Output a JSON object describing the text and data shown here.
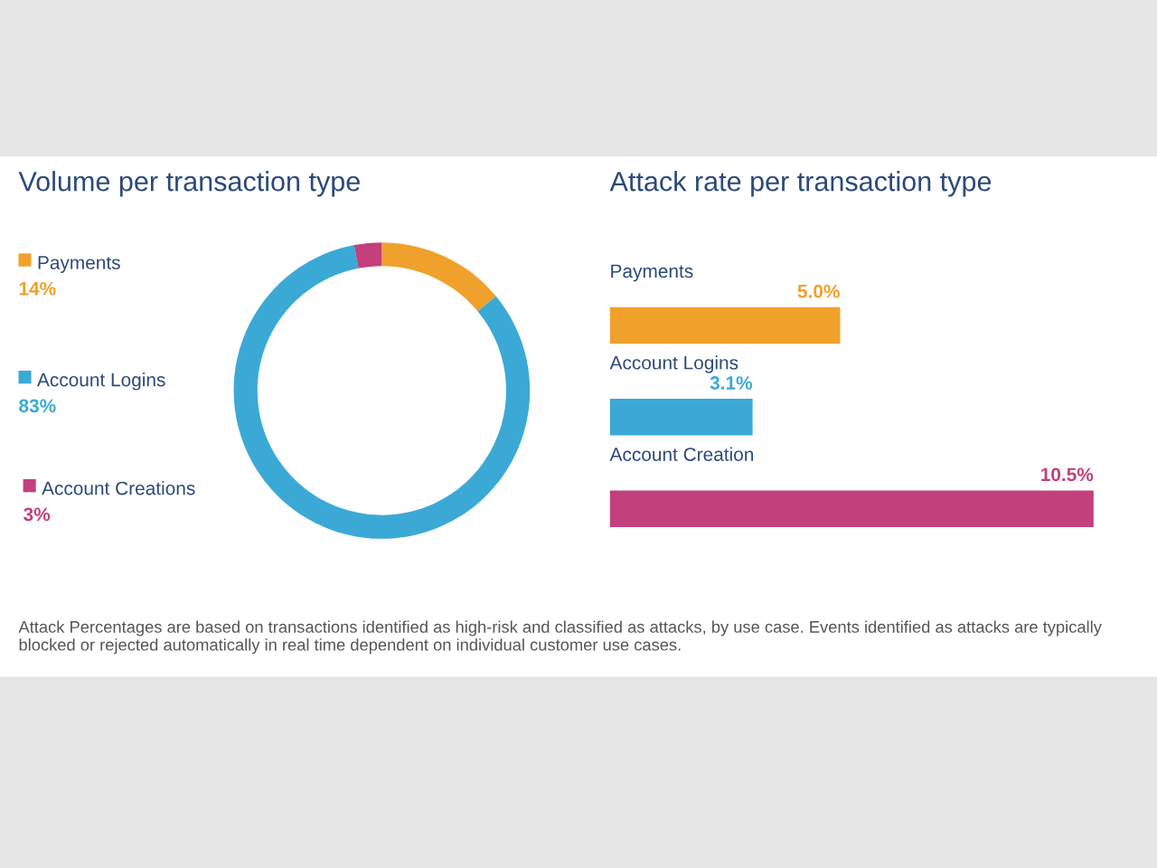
{
  "chart_data": [
    {
      "type": "donut",
      "title": "Volume per transaction type",
      "categories": [
        "Payments",
        "Account Logins",
        "Account Creations"
      ],
      "values": [
        14,
        83,
        3
      ],
      "colors": [
        "#f0a12c",
        "#3ba9d6",
        "#c2407b"
      ],
      "value_labels": [
        "14%",
        "83%",
        "3%"
      ],
      "legend": "left",
      "annotations": [
        "Attack Percentages are based on transactions identified as high-risk and classified as attacks, by use case. Events identified as attacks are typically blocked or rejected automatically in real time dependent on individual customer use cases."
      ]
    },
    {
      "type": "bar",
      "orientation": "horizontal",
      "title": "Attack rate per transaction type",
      "categories": [
        "Payments",
        "Account Logins",
        "Account Creation"
      ],
      "values": [
        5.0,
        3.1,
        10.5
      ],
      "colors": [
        "#f0a12c",
        "#3ba9d6",
        "#c2407b"
      ],
      "value_labels": [
        "5.0%",
        "3.1%",
        "10.5%"
      ]
    }
  ]
}
